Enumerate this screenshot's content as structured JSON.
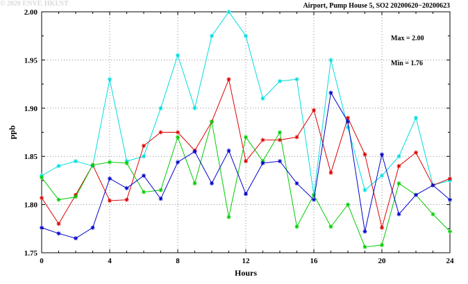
{
  "watermark": "© 2020 ENVF, HKUST",
  "chart_data": {
    "type": "line",
    "title": "Airport, Pump House 5, SO2 20200620−20200623",
    "xlabel": "Hours",
    "ylabel": "ppb",
    "xlim": [
      0,
      24
    ],
    "ylim": [
      1.75,
      2.0
    ],
    "x_ticks": [
      0,
      4,
      8,
      12,
      16,
      20,
      24
    ],
    "y_ticks": [
      1.75,
      1.8,
      1.85,
      1.9,
      1.95,
      2.0
    ],
    "grid": true,
    "legend_position": "none",
    "marker": "asterisk",
    "annotations": [
      "Max = 2.00",
      "Min = 1.76"
    ],
    "stats": {
      "max": 2.0,
      "min": 1.76
    },
    "x": [
      0,
      1,
      2,
      3,
      4,
      5,
      6,
      7,
      8,
      9,
      10,
      11,
      12,
      13,
      14,
      15,
      16,
      17,
      18,
      19,
      20,
      21,
      22,
      23,
      24
    ],
    "series": [
      {
        "name": "cyan",
        "color": "#00dddd",
        "values": [
          1.83,
          1.84,
          1.845,
          1.84,
          1.93,
          1.845,
          1.85,
          1.9,
          1.955,
          1.9,
          1.975,
          2.0,
          1.975,
          1.91,
          1.928,
          1.93,
          1.81,
          1.95,
          1.88,
          1.815,
          1.83,
          1.85,
          1.89,
          1.82,
          1.825
        ]
      },
      {
        "name": "red",
        "color": "#dd0000",
        "values": [
          1.807,
          1.78,
          1.81,
          1.841,
          1.804,
          1.805,
          1.861,
          1.875,
          1.875,
          1.856,
          1.886,
          1.93,
          1.845,
          1.867,
          1.867,
          1.87,
          1.898,
          1.833,
          1.89,
          1.852,
          1.776,
          1.84,
          1.854,
          1.82,
          1.827
        ]
      },
      {
        "name": "green",
        "color": "#00cc00",
        "values": [
          1.828,
          1.805,
          1.808,
          1.841,
          1.844,
          1.843,
          1.813,
          1.815,
          1.87,
          1.822,
          1.886,
          1.787,
          1.87,
          1.845,
          1.875,
          1.777,
          1.81,
          1.777,
          1.8,
          1.756,
          1.758,
          1.822,
          1.81,
          1.79,
          1.772
        ]
      },
      {
        "name": "blue",
        "color": "#0000cc",
        "values": [
          1.776,
          1.77,
          1.765,
          1.776,
          1.827,
          1.817,
          1.83,
          1.806,
          1.844,
          1.855,
          1.822,
          1.856,
          1.811,
          1.843,
          1.845,
          1.822,
          1.805,
          1.916,
          1.886,
          1.772,
          1.852,
          1.79,
          1.81,
          1.82,
          1.805
        ]
      }
    ]
  }
}
